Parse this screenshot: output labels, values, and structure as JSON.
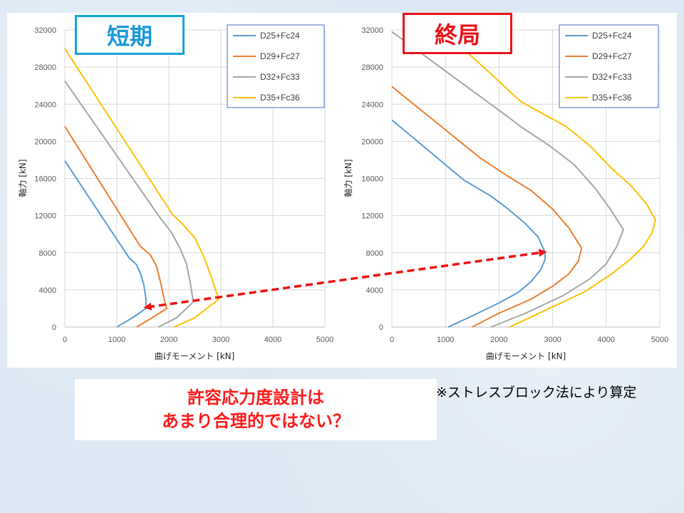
{
  "labels": {
    "short_term": "短期",
    "ultimate": "終局",
    "bottom_line1": "許容応力度設計は",
    "bottom_line2": "あまり合理的ではない？",
    "note": "※ストレスブロック法により算定"
  },
  "chart_data": [
    {
      "type": "line",
      "title": "短期",
      "xlabel": "曲げモーメント [kN]",
      "ylabel": "軸力 [kN]",
      "xlim": [
        0,
        5000
      ],
      "ylim": [
        0,
        32000
      ],
      "xticks": [
        0,
        1000,
        2000,
        3000,
        4000,
        5000
      ],
      "yticks": [
        0,
        4000,
        8000,
        12000,
        16000,
        20000,
        24000,
        28000,
        32000
      ],
      "grid": true,
      "legend_position": "top-right",
      "series": [
        {
          "name": "D25+Fc24",
          "color": "#5b9bd5",
          "points": [
            [
              1000,
              0
            ],
            [
              1300,
              1000
            ],
            [
              1560,
              2000
            ],
            [
              1560,
              3000
            ],
            [
              1520,
              4500
            ],
            [
              1460,
              5700
            ],
            [
              1380,
              6700
            ],
            [
              1230,
              7500
            ],
            [
              0,
              17900
            ]
          ]
        },
        {
          "name": "D29+Fc27",
          "color": "#ed7d31",
          "points": [
            [
              1380,
              0
            ],
            [
              1680,
              1000
            ],
            [
              1960,
              2000
            ],
            [
              1910,
              3000
            ],
            [
              1840,
              4800
            ],
            [
              1760,
              6600
            ],
            [
              1640,
              7800
            ],
            [
              1450,
              8700
            ],
            [
              0,
              21600
            ]
          ]
        },
        {
          "name": "D32+Fc33",
          "color": "#a5a5a5",
          "points": [
            [
              1800,
              0
            ],
            [
              2150,
              1000
            ],
            [
              2470,
              2700
            ],
            [
              2420,
              4500
            ],
            [
              2340,
              6800
            ],
            [
              2220,
              8400
            ],
            [
              2050,
              10200
            ],
            [
              1840,
              11700
            ],
            [
              0,
              26500
            ]
          ]
        },
        {
          "name": "D35+Fc36",
          "color": "#ffc000",
          "points": [
            [
              2100,
              0
            ],
            [
              2500,
              1000
            ],
            [
              2960,
              3000
            ],
            [
              2820,
              5300
            ],
            [
              2680,
              7500
            ],
            [
              2500,
              9600
            ],
            [
              2280,
              11000
            ],
            [
              2060,
              12200
            ],
            [
              0,
              30000
            ]
          ]
        }
      ]
    },
    {
      "type": "line",
      "title": "終局",
      "xlabel": "曲げモーメント [kN]",
      "ylabel": "軸力 [kN]",
      "xlim": [
        0,
        5000
      ],
      "ylim": [
        0,
        32000
      ],
      "xticks": [
        0,
        1000,
        2000,
        3000,
        4000,
        5000
      ],
      "yticks": [
        0,
        4000,
        8000,
        12000,
        16000,
        20000,
        24000,
        28000,
        32000
      ],
      "grid": true,
      "legend_position": "top-right",
      "series": [
        {
          "name": "D25+Fc24",
          "color": "#5b9bd5",
          "points": [
            [
              1050,
              0
            ],
            [
              1500,
              1200
            ],
            [
              2000,
              2600
            ],
            [
              2350,
              3700
            ],
            [
              2600,
              4900
            ],
            [
              2780,
              6200
            ],
            [
              2860,
              7300
            ],
            [
              2860,
              8000
            ],
            [
              2730,
              9700
            ],
            [
              2480,
              11200
            ],
            [
              2130,
              12900
            ],
            [
              1850,
              14100
            ],
            [
              1350,
              15800
            ],
            [
              0,
              22300
            ]
          ]
        },
        {
          "name": "D29+Fc27",
          "color": "#ed7d31",
          "points": [
            [
              1500,
              0
            ],
            [
              2000,
              1500
            ],
            [
              2600,
              3000
            ],
            [
              3000,
              4400
            ],
            [
              3300,
              5700
            ],
            [
              3480,
              7100
            ],
            [
              3540,
              8500
            ],
            [
              3300,
              10700
            ],
            [
              3000,
              12700
            ],
            [
              2600,
              14700
            ],
            [
              2150,
              16300
            ],
            [
              1650,
              18200
            ],
            [
              0,
              25900
            ]
          ]
        },
        {
          "name": "D32+Fc33",
          "color": "#a5a5a5",
          "points": [
            [
              1850,
              0
            ],
            [
              2500,
              1500
            ],
            [
              3200,
              3400
            ],
            [
              3700,
              5200
            ],
            [
              4000,
              6800
            ],
            [
              4200,
              8700
            ],
            [
              4320,
              10500
            ],
            [
              4100,
              12500
            ],
            [
              3800,
              14900
            ],
            [
              3400,
              17500
            ],
            [
              2950,
              19500
            ],
            [
              2400,
              21600
            ],
            [
              2200,
              22500
            ],
            [
              0,
              31800
            ]
          ]
        },
        {
          "name": "D35+Fc36",
          "color": "#ffc000",
          "points": [
            [
              2200,
              0
            ],
            [
              2900,
              1900
            ],
            [
              3600,
              3800
            ],
            [
              4100,
              5700
            ],
            [
              4450,
              7300
            ],
            [
              4700,
              8700
            ],
            [
              4850,
              10100
            ],
            [
              4920,
              11500
            ],
            [
              4750,
              13300
            ],
            [
              4450,
              15300
            ],
            [
              4100,
              17100
            ],
            [
              3700,
              19500
            ],
            [
              3250,
              21600
            ],
            [
              2400,
              24300
            ],
            [
              1900,
              27000
            ],
            [
              1250,
              30400
            ]
          ]
        }
      ]
    }
  ]
}
